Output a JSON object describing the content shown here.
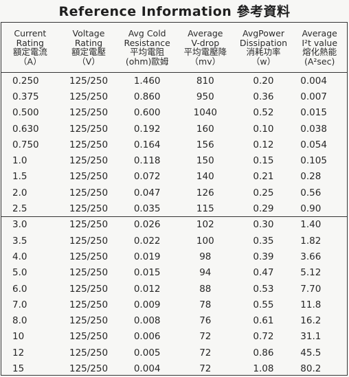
{
  "title": "Reference Information 參考資料",
  "headers": [
    {
      "lines": [
        "Current",
        "Rating",
        "額定電流",
        "（A）"
      ]
    },
    {
      "lines": [
        "Voltage",
        "Rating",
        "額定電壓",
        "（V）"
      ]
    },
    {
      "lines": [
        "Avg Cold",
        "Resistance",
        "平均電阻",
        "(ohm)歐姆"
      ]
    },
    {
      "lines": [
        "Average",
        "V-drop",
        "平均電壓降",
        "（mv）"
      ]
    },
    {
      "lines": [
        "AvgPower",
        "Dissipation",
        "消耗功率",
        "（w）"
      ]
    },
    {
      "lines": [
        "Average",
        "I²t value",
        "熔化熱能",
        "(A²sec)"
      ]
    }
  ],
  "rows": [
    [
      "0.250",
      "125/250",
      "1.460",
      "810",
      "0.20",
      "0.004"
    ],
    [
      "0.375",
      "125/250",
      "0.860",
      "950",
      "0.36",
      "0.007"
    ],
    [
      "0.500",
      "125/250",
      "0.600",
      "1040",
      "0.52",
      "0.015"
    ],
    [
      "0.630",
      "125/250",
      "0.192",
      "160",
      "0.10",
      "0.038"
    ],
    [
      "0.750",
      "125/250",
      "0.164",
      "156",
      "0.12",
      "0.054"
    ],
    [
      "1.0",
      "125/250",
      "0.118",
      "150",
      "0.15",
      "0.105"
    ],
    [
      "1.5",
      "125/250",
      "0.072",
      "140",
      "0.21",
      "0.28"
    ],
    [
      "2.0",
      "125/250",
      "0.047",
      "126",
      "0.25",
      "0.56"
    ],
    [
      "2.5",
      "125/250",
      "0.035",
      "115",
      "0.29",
      "0.90"
    ],
    [
      "3.0",
      "125/250",
      "0.026",
      "102",
      "0.30",
      "1.40"
    ],
    [
      "3.5",
      "125/250",
      "0.022",
      "100",
      "0.35",
      "1.82"
    ],
    [
      "4.0",
      "125/250",
      "0.019",
      "98",
      "0.39",
      "3.66"
    ],
    [
      "5.0",
      "125/250",
      "0.015",
      "94",
      "0.47",
      "5.12"
    ],
    [
      "6.0",
      "125/250",
      "0.012",
      "88",
      "0.53",
      "7.70"
    ],
    [
      "7.0",
      "125/250",
      "0.009",
      "78",
      "0.55",
      "11.8"
    ],
    [
      "8.0",
      "125/250",
      "0.008",
      "76",
      "0.61",
      "16.2"
    ],
    [
      "10",
      "125/250",
      "0.006",
      "72",
      "0.72",
      "31.1"
    ],
    [
      "12",
      "125/250",
      "0.005",
      "72",
      "0.86",
      "45.5"
    ],
    [
      "15",
      "125/250",
      "0.004",
      "72",
      "1.08",
      "80.2"
    ]
  ],
  "group_break_after_row": 9
}
